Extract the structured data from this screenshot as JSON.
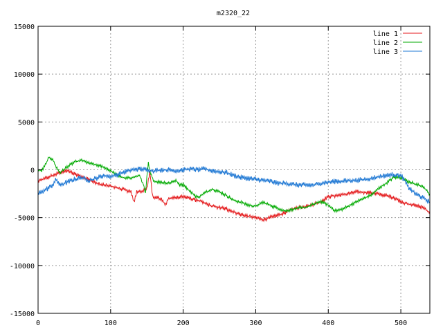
{
  "chart_data": {
    "type": "line",
    "title": "m2320_22",
    "xlabel": "",
    "ylabel": "",
    "xlim": [
      0,
      540
    ],
    "ylim": [
      -15000,
      15000
    ],
    "x_ticks": [
      0,
      100,
      200,
      300,
      400,
      500
    ],
    "y_ticks": [
      -15000,
      -10000,
      -5000,
      0,
      5000,
      10000,
      15000
    ],
    "grid": true,
    "legend_position": "top-right",
    "series": [
      {
        "name": "line 1",
        "color": "#e41a1c",
        "noise": 200,
        "points": [
          [
            0,
            -1200
          ],
          [
            10,
            -900
          ],
          [
            20,
            -600
          ],
          [
            30,
            -300
          ],
          [
            40,
            -100
          ],
          [
            50,
            -400
          ],
          [
            60,
            -700
          ],
          [
            70,
            -1000
          ],
          [
            80,
            -1400
          ],
          [
            90,
            -1600
          ],
          [
            100,
            -1700
          ],
          [
            110,
            -1900
          ],
          [
            120,
            -2100
          ],
          [
            128,
            -2300
          ],
          [
            132,
            -3400
          ],
          [
            136,
            -2300
          ],
          [
            145,
            -2200
          ],
          [
            150,
            -2000
          ],
          [
            154,
            -200
          ],
          [
            158,
            -2800
          ],
          [
            165,
            -2900
          ],
          [
            172,
            -3200
          ],
          [
            175,
            -3700
          ],
          [
            180,
            -3000
          ],
          [
            200,
            -2800
          ],
          [
            220,
            -3200
          ],
          [
            240,
            -3800
          ],
          [
            260,
            -4100
          ],
          [
            280,
            -4700
          ],
          [
            300,
            -5000
          ],
          [
            310,
            -5200
          ],
          [
            320,
            -5000
          ],
          [
            340,
            -4500
          ],
          [
            350,
            -4100
          ],
          [
            360,
            -3900
          ],
          [
            370,
            -3800
          ],
          [
            380,
            -3600
          ],
          [
            390,
            -3300
          ],
          [
            400,
            -2800
          ],
          [
            420,
            -2600
          ],
          [
            440,
            -2300
          ],
          [
            460,
            -2400
          ],
          [
            480,
            -2700
          ],
          [
            490,
            -2900
          ],
          [
            500,
            -3300
          ],
          [
            510,
            -3600
          ],
          [
            520,
            -3700
          ],
          [
            530,
            -3900
          ],
          [
            540,
            -4500
          ]
        ]
      },
      {
        "name": "line 2",
        "color": "#00aa00",
        "noise": 160,
        "points": [
          [
            0,
            0
          ],
          [
            5,
            -100
          ],
          [
            10,
            500
          ],
          [
            15,
            1300
          ],
          [
            20,
            1100
          ],
          [
            25,
            300
          ],
          [
            30,
            -300
          ],
          [
            40,
            300
          ],
          [
            50,
            800
          ],
          [
            60,
            1000
          ],
          [
            70,
            700
          ],
          [
            80,
            500
          ],
          [
            90,
            300
          ],
          [
            100,
            -100
          ],
          [
            110,
            -600
          ],
          [
            120,
            -900
          ],
          [
            130,
            -800
          ],
          [
            140,
            -600
          ],
          [
            145,
            -1500
          ],
          [
            148,
            -2500
          ],
          [
            150,
            -800
          ],
          [
            152,
            700
          ],
          [
            155,
            -400
          ],
          [
            160,
            -1200
          ],
          [
            170,
            -1300
          ],
          [
            180,
            -1400
          ],
          [
            190,
            -1100
          ],
          [
            195,
            -1600
          ],
          [
            200,
            -1500
          ],
          [
            210,
            -2300
          ],
          [
            220,
            -2900
          ],
          [
            230,
            -2400
          ],
          [
            240,
            -2000
          ],
          [
            250,
            -2300
          ],
          [
            260,
            -2700
          ],
          [
            270,
            -3200
          ],
          [
            280,
            -3400
          ],
          [
            290,
            -3700
          ],
          [
            300,
            -3800
          ],
          [
            310,
            -3400
          ],
          [
            320,
            -3700
          ],
          [
            330,
            -4000
          ],
          [
            340,
            -4300
          ],
          [
            360,
            -4000
          ],
          [
            370,
            -3900
          ],
          [
            380,
            -3600
          ],
          [
            390,
            -3300
          ],
          [
            400,
            -3700
          ],
          [
            410,
            -4300
          ],
          [
            420,
            -4100
          ],
          [
            440,
            -3300
          ],
          [
            460,
            -2600
          ],
          [
            470,
            -1900
          ],
          [
            480,
            -1400
          ],
          [
            490,
            -800
          ],
          [
            500,
            -800
          ],
          [
            510,
            -1200
          ],
          [
            520,
            -1500
          ],
          [
            530,
            -1700
          ],
          [
            540,
            -2600
          ]
        ]
      },
      {
        "name": "line 3",
        "color": "#1f78d4",
        "noise": 260,
        "points": [
          [
            0,
            -2500
          ],
          [
            10,
            -2100
          ],
          [
            20,
            -1600
          ],
          [
            25,
            -1000
          ],
          [
            30,
            -1600
          ],
          [
            40,
            -1300
          ],
          [
            50,
            -1000
          ],
          [
            60,
            -800
          ],
          [
            70,
            -1100
          ],
          [
            80,
            -900
          ],
          [
            90,
            -600
          ],
          [
            100,
            -700
          ],
          [
            110,
            -500
          ],
          [
            120,
            -200
          ],
          [
            130,
            0
          ],
          [
            140,
            100
          ],
          [
            150,
            0
          ],
          [
            160,
            -100
          ],
          [
            170,
            0
          ],
          [
            180,
            0
          ],
          [
            190,
            -100
          ],
          [
            200,
            0
          ],
          [
            210,
            100
          ],
          [
            220,
            0
          ],
          [
            230,
            100
          ],
          [
            240,
            -100
          ],
          [
            250,
            -200
          ],
          [
            260,
            -300
          ],
          [
            270,
            -600
          ],
          [
            280,
            -800
          ],
          [
            290,
            -900
          ],
          [
            300,
            -1000
          ],
          [
            310,
            -1100
          ],
          [
            320,
            -1200
          ],
          [
            330,
            -1400
          ],
          [
            340,
            -1400
          ],
          [
            350,
            -1500
          ],
          [
            360,
            -1600
          ],
          [
            370,
            -1600
          ],
          [
            380,
            -1600
          ],
          [
            390,
            -1400
          ],
          [
            400,
            -1300
          ],
          [
            410,
            -1200
          ],
          [
            420,
            -1200
          ],
          [
            430,
            -1100
          ],
          [
            440,
            -1100
          ],
          [
            450,
            -1000
          ],
          [
            460,
            -900
          ],
          [
            470,
            -700
          ],
          [
            480,
            -600
          ],
          [
            490,
            -500
          ],
          [
            500,
            -600
          ],
          [
            505,
            -1100
          ],
          [
            510,
            -1800
          ],
          [
            520,
            -2500
          ],
          [
            530,
            -2900
          ],
          [
            540,
            -3400
          ]
        ]
      }
    ]
  }
}
